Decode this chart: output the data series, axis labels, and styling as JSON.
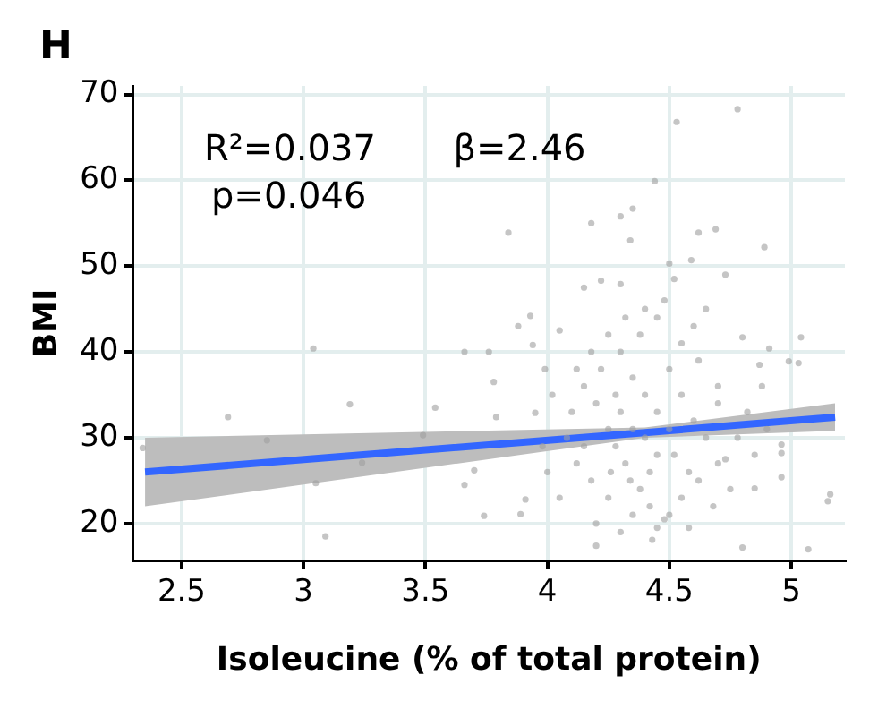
{
  "chart_data": {
    "type": "scatter",
    "title": "H",
    "xlabel": "Isoleucine (% of total protein)",
    "ylabel": "BMI",
    "annotations": [
      "R²=0.037",
      "β=2.46",
      "p=0.046"
    ],
    "xlim": [
      2.3,
      5.22
    ],
    "ylim": [
      15.7,
      71
    ],
    "xticks": [
      2.5,
      3,
      3.5,
      4,
      4.5,
      5
    ],
    "yticks": [
      20,
      30,
      40,
      50,
      60,
      70
    ],
    "grid": true,
    "series": [
      {
        "marker": "circle",
        "color": "#9e9e9e",
        "x": [
          2.34,
          2.69,
          2.85,
          3.04,
          3.19,
          3.05,
          3.24,
          3.09,
          3.49,
          3.54,
          4.78,
          4.53,
          4.44,
          3.84,
          4.18,
          4.3,
          4.35,
          4.34,
          4.62,
          4.69,
          4.89,
          4.73,
          4.5,
          4.59,
          3.93,
          3.88,
          4.05,
          3.66,
          3.76,
          3.94,
          4.91,
          4.99,
          5.03,
          5.04,
          4.8,
          4.87,
          3.78,
          3.79,
          3.95,
          3.99,
          3.7,
          3.66,
          3.74,
          3.89,
          3.91,
          4.2,
          4.43,
          4.8,
          5.07,
          5.16,
          5.15,
          4.96,
          4.96,
          4.96,
          4.85,
          4.73,
          4.52,
          4.3,
          4.22,
          4.15,
          4.3,
          4.35,
          4.4,
          4.45,
          4.42,
          4.38,
          4.32,
          4.28,
          4.25,
          4.2,
          4.15,
          4.22,
          4.3,
          4.38,
          4.45,
          4.5,
          4.55,
          4.6,
          4.65,
          4.7,
          4.62,
          4.55,
          4.5,
          4.45,
          4.35,
          4.25,
          4.18,
          4.12,
          4.08,
          4.1,
          4.05,
          4.0,
          4.2,
          4.3,
          4.48,
          4.58,
          4.68,
          4.75,
          4.78,
          4.82,
          4.7,
          4.62,
          4.55,
          4.48,
          4.4,
          4.32,
          4.25,
          4.18,
          4.12,
          4.4,
          4.45,
          4.35,
          4.28,
          4.5,
          4.52,
          4.58,
          4.42,
          4.34,
          4.26,
          4.15,
          4.6,
          4.65,
          4.7,
          4.85,
          4.9,
          4.02,
          3.98,
          4.88
        ],
        "values": [
          28.8,
          32.4,
          29.7,
          40.4,
          33.9,
          24.7,
          27.1,
          18.5,
          30.3,
          33.5,
          68.3,
          66.8,
          59.9,
          53.9,
          55,
          55.8,
          56.7,
          53,
          53.9,
          54.3,
          52.2,
          49,
          50.3,
          50.7,
          44.2,
          43,
          42.5,
          40,
          40,
          40.8,
          40.4,
          38.9,
          38.7,
          41.7,
          41.7,
          38.5,
          36.5,
          32.4,
          32.9,
          38,
          26.2,
          24.5,
          20.9,
          21.1,
          22.8,
          17.4,
          18.1,
          17.2,
          17,
          23.4,
          22.6,
          28.2,
          29.2,
          25.4,
          24.1,
          27.5,
          48.5,
          47.9,
          48.3,
          47.5,
          33,
          31,
          30,
          28,
          26,
          24,
          27,
          29,
          31,
          34,
          36,
          38,
          40,
          42,
          44,
          38,
          35,
          32,
          30,
          27,
          25,
          23,
          21,
          19.5,
          21,
          23,
          25,
          27,
          30,
          33,
          23,
          26,
          20,
          19,
          20.5,
          19.5,
          22,
          24,
          30,
          33,
          36,
          39,
          41,
          46,
          45,
          44,
          42,
          40,
          38,
          35,
          33,
          37,
          35,
          31,
          28,
          26,
          22,
          25,
          26,
          29,
          43,
          45,
          34,
          28,
          31,
          35,
          29,
          36
        ]
      },
      {
        "type": "line",
        "color": "#3366ff",
        "x": [
          2.35,
          4.4,
          5.18
        ],
        "values": [
          26,
          30.6,
          32.4
        ],
        "lower": [
          22,
          30,
          30.8
        ],
        "upper": [
          30,
          31.2,
          34
        ]
      }
    ]
  }
}
